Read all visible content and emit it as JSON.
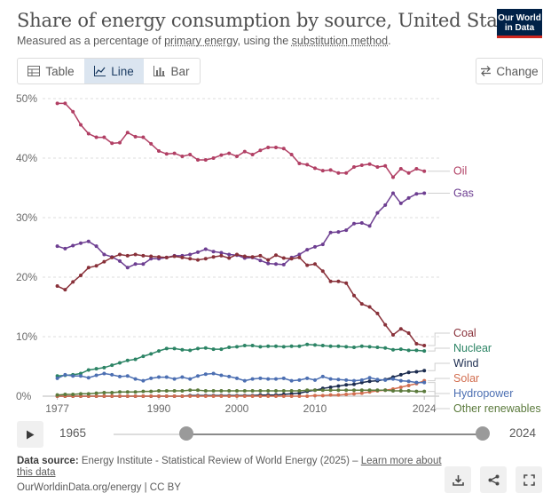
{
  "header": {
    "title": "Share of energy consumption by source, United States",
    "subtitle_prefix": "Measured as a percentage of ",
    "subtitle_link1": "primary energy",
    "subtitle_mid": ", using the ",
    "subtitle_link2": "substitution method",
    "subtitle_suffix": ".",
    "logo_line1": "Our World",
    "logo_line2": "in Data"
  },
  "tabs": [
    {
      "label": "Table",
      "icon": "table-icon"
    },
    {
      "label": "Line",
      "icon": "line-chart-icon",
      "active": true
    },
    {
      "label": "Bar",
      "icon": "bar-chart-icon"
    }
  ],
  "change_button": {
    "label": "Change",
    "icon": "swap-icon"
  },
  "timeline": {
    "start": "1965",
    "end": "2024",
    "play_icon": "play-icon"
  },
  "footer": {
    "source_label": "Data source:",
    "source_text": " Energy Institute - Statistical Review of World Energy (2025) – ",
    "source_link": "Learn more about this data",
    "url": "OurWorldinData.org/energy | CC BY"
  },
  "actions": [
    {
      "name": "download-button",
      "icon": "download-icon"
    },
    {
      "name": "share-button",
      "icon": "share-icon"
    },
    {
      "name": "fullscreen-button",
      "icon": "fullscreen-icon"
    }
  ],
  "chart_data": {
    "type": "line",
    "title": "Share of energy consumption by source, United States",
    "ylim": [
      0,
      50
    ],
    "xlim": [
      1975,
      2025
    ],
    "y_ticks": [
      0,
      10,
      20,
      30,
      40,
      50
    ],
    "y_tick_labels": [
      "0%",
      "10%",
      "20%",
      "30%",
      "40%",
      "50%"
    ],
    "x_ticks": [
      1977,
      1990,
      2000,
      2010,
      2024
    ],
    "x_tick_labels": [
      "1977",
      "1990",
      "2000",
      "2010",
      "2024"
    ],
    "grid": "horizontal dashed",
    "legend": "right end labels",
    "x": [
      1977,
      1978,
      1979,
      1980,
      1981,
      1982,
      1983,
      1984,
      1985,
      1986,
      1987,
      1988,
      1989,
      1990,
      1991,
      1992,
      1993,
      1994,
      1995,
      1996,
      1997,
      1998,
      1999,
      2000,
      2001,
      2002,
      2003,
      2004,
      2005,
      2006,
      2007,
      2008,
      2009,
      2010,
      2011,
      2012,
      2013,
      2014,
      2015,
      2016,
      2017,
      2018,
      2019,
      2020,
      2021,
      2022,
      2023,
      2024
    ],
    "series": [
      {
        "name": "Oil",
        "color": "#b13f64",
        "values": [
          49.2,
          49.2,
          47.8,
          45.6,
          44.1,
          43.5,
          43.5,
          42.5,
          42.6,
          44.3,
          43.6,
          43.5,
          42.4,
          41.2,
          40.7,
          40.8,
          40.3,
          40.6,
          39.7,
          39.7,
          40.0,
          40.5,
          40.8,
          40.3,
          41.1,
          40.6,
          41.3,
          41.8,
          41.8,
          41.6,
          40.6,
          39.1,
          38.9,
          38.3,
          37.9,
          38.0,
          37.5,
          37.5,
          38.5,
          38.8,
          39.0,
          38.5,
          38.7,
          36.8,
          38.2,
          37.5,
          38.2,
          37.8
        ]
      },
      {
        "name": "Gas",
        "color": "#6d3e91",
        "values": [
          25.2,
          24.8,
          25.3,
          25.7,
          26.0,
          25.2,
          23.8,
          23.4,
          22.7,
          21.6,
          22.2,
          22.2,
          23.1,
          23.1,
          23.3,
          23.6,
          23.6,
          23.8,
          24.2,
          24.7,
          24.3,
          24.1,
          23.8,
          23.7,
          23.2,
          23.3,
          22.8,
          22.3,
          22.2,
          22.1,
          23.3,
          23.8,
          24.6,
          25.1,
          25.5,
          27.5,
          27.6,
          27.9,
          29.0,
          29.1,
          28.6,
          30.8,
          32.1,
          34.1,
          32.4,
          33.3,
          34.0,
          34.1
        ]
      },
      {
        "name": "Coal",
        "color": "#883039",
        "values": [
          18.5,
          17.9,
          19.2,
          20.3,
          21.6,
          21.9,
          22.6,
          23.3,
          23.8,
          23.6,
          23.8,
          23.6,
          23.5,
          23.4,
          23.3,
          23.5,
          23.3,
          23.1,
          22.9,
          23.1,
          23.4,
          23.6,
          23.2,
          23.8,
          23.5,
          23.4,
          23.6,
          22.9,
          23.7,
          23.2,
          23.1,
          23.3,
          22.0,
          22.2,
          21.0,
          19.3,
          19.3,
          19.0,
          16.9,
          15.5,
          15.0,
          13.9,
          12.0,
          10.3,
          11.3,
          10.6,
          8.8,
          8.5
        ]
      },
      {
        "name": "Nuclear",
        "color": "#2c8465",
        "values": [
          3.4,
          3.5,
          3.6,
          3.8,
          4.4,
          4.6,
          4.8,
          5.2,
          5.6,
          6.0,
          6.2,
          6.7,
          7.1,
          7.6,
          8.0,
          8.0,
          7.8,
          7.7,
          8.0,
          8.1,
          7.9,
          7.9,
          8.2,
          8.3,
          8.5,
          8.5,
          8.3,
          8.4,
          8.4,
          8.3,
          8.4,
          8.4,
          8.7,
          8.6,
          8.5,
          8.4,
          8.4,
          8.3,
          8.2,
          8.4,
          8.3,
          8.2,
          8.1,
          7.8,
          7.9,
          7.7,
          7.7,
          7.6
        ]
      },
      {
        "name": "Wind",
        "color": "#1c2c4f",
        "values": [
          0,
          0,
          0,
          0,
          0,
          0,
          0,
          0,
          0,
          0,
          0,
          0,
          0,
          0,
          0,
          0,
          0,
          0.1,
          0.1,
          0.1,
          0.1,
          0.1,
          0.1,
          0.1,
          0.1,
          0.1,
          0.2,
          0.2,
          0.2,
          0.3,
          0.4,
          0.5,
          0.8,
          1.0,
          1.3,
          1.5,
          1.7,
          1.9,
          2.0,
          2.3,
          2.5,
          2.6,
          2.8,
          3.2,
          3.6,
          4.0,
          4.1,
          4.3
        ]
      },
      {
        "name": "Solar",
        "color": "#d26e50",
        "values": [
          0,
          0,
          0,
          0,
          0,
          0,
          0,
          0,
          0,
          0,
          0,
          0,
          0,
          0,
          0,
          0,
          0,
          0,
          0,
          0,
          0,
          0,
          0,
          0,
          0,
          0,
          0,
          0,
          0,
          0,
          0,
          0,
          0,
          0.1,
          0.1,
          0.2,
          0.2,
          0.3,
          0.4,
          0.5,
          0.7,
          0.9,
          1.0,
          1.2,
          1.5,
          1.8,
          2.1,
          2.6
        ]
      },
      {
        "name": "Hydropower",
        "color": "#4c6fb2",
        "values": [
          3.0,
          3.6,
          3.4,
          3.4,
          3.1,
          3.5,
          3.8,
          3.6,
          3.3,
          3.4,
          2.9,
          2.6,
          3.0,
          3.2,
          3.2,
          2.9,
          3.2,
          2.9,
          3.4,
          3.7,
          3.8,
          3.5,
          3.3,
          3.0,
          2.6,
          2.9,
          3.0,
          2.9,
          2.9,
          3.0,
          2.6,
          2.7,
          3.0,
          2.7,
          3.3,
          2.9,
          2.8,
          2.7,
          2.6,
          2.7,
          3.1,
          2.8,
          2.7,
          2.9,
          2.6,
          2.5,
          2.3,
          2.3
        ]
      },
      {
        "name": "Other renewables",
        "color": "#5b7a3c",
        "values": [
          0.2,
          0.3,
          0.3,
          0.4,
          0.4,
          0.5,
          0.6,
          0.6,
          0.7,
          0.7,
          0.7,
          0.8,
          0.8,
          0.9,
          0.9,
          0.9,
          0.9,
          1.0,
          1.0,
          0.9,
          0.9,
          0.9,
          0.9,
          0.9,
          0.9,
          0.9,
          0.9,
          0.9,
          0.9,
          0.9,
          0.9,
          0.9,
          1.0,
          1.0,
          1.0,
          1.0,
          1.0,
          1.0,
          1.0,
          1.0,
          1.0,
          1.0,
          1.0,
          0.9,
          0.9,
          0.9,
          0.8,
          0.8
        ]
      }
    ]
  }
}
